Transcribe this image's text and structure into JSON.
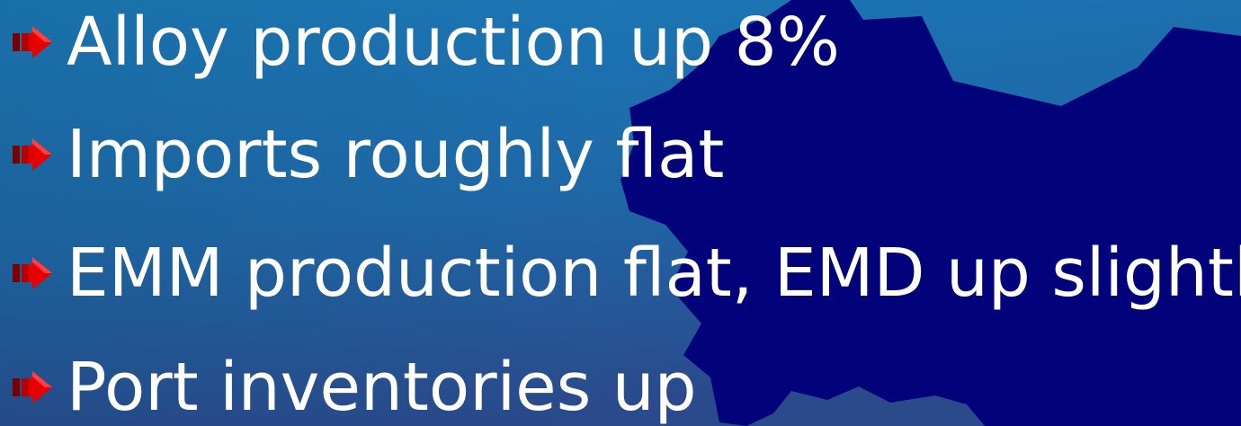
{
  "slide": {
    "bullets": [
      {
        "text": "Alloy production up 8%"
      },
      {
        "text": "Imports roughly flat"
      },
      {
        "text": "EMM production flat, EMD up slightly"
      },
      {
        "text": "Port inventories up"
      }
    ]
  },
  "icons": {
    "bullet": "red-arrow-icon"
  },
  "colors": {
    "background_light": "#1f73b0",
    "background_dark": "#27488a",
    "map_shape": "#02037a",
    "text": "#ffffff",
    "bullet_arrow": "#e00000"
  }
}
